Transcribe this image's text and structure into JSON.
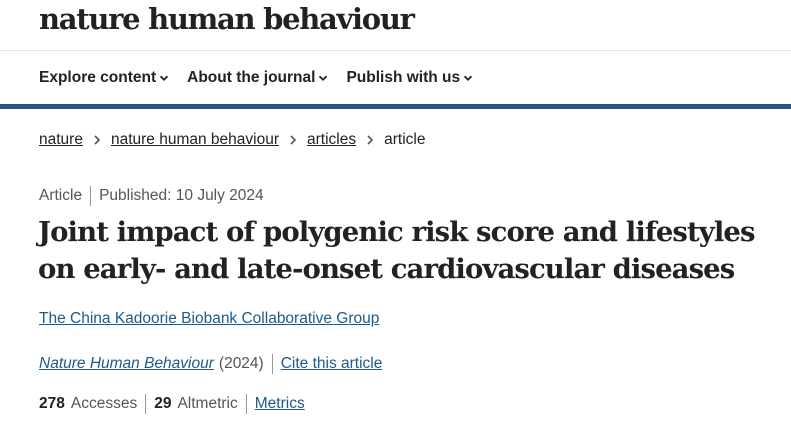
{
  "header": {
    "brand": "nature human behaviour"
  },
  "nav": {
    "items": [
      {
        "label": "Explore content"
      },
      {
        "label": "About the journal"
      },
      {
        "label": "Publish with us"
      }
    ]
  },
  "breadcrumb": {
    "items": [
      "nature",
      "nature human behaviour",
      "articles"
    ],
    "current": "article"
  },
  "article": {
    "type": "Article",
    "published": "Published: 10 July 2024",
    "title": "Joint impact of polygenic risk score and lifestyles on early- and late-onset cardiovascular diseases",
    "authors": "The China Kadoorie Biobank Collaborative Group",
    "journal": "Nature Human Behaviour",
    "year": "(2024)",
    "cite_label": "Cite this article",
    "accesses_count": "278",
    "accesses_label": "Accesses",
    "altmetric_count": "29",
    "altmetric_label": "Altmetric",
    "metrics_label": "Metrics"
  },
  "colors": {
    "accent_bar": "#2a5687",
    "link": "#1e5a8a"
  }
}
